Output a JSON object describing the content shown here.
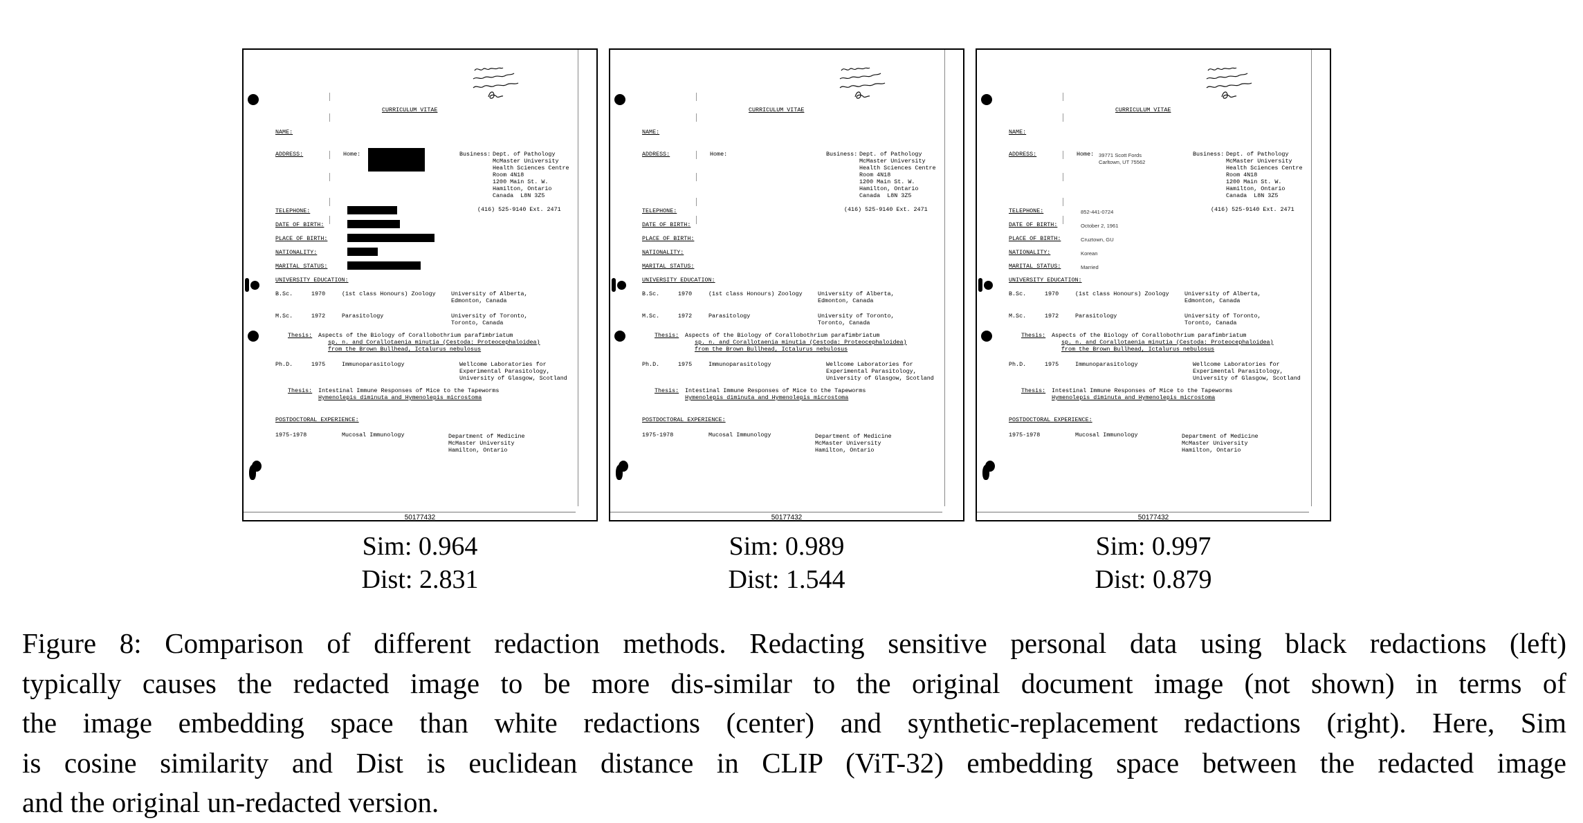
{
  "panels": [
    {
      "id": "black",
      "sim_label": "Sim: 0.964",
      "dist_label": "Dist: 2.831",
      "home_address": [],
      "personal": []
    },
    {
      "id": "white",
      "sim_label": "Sim: 0.989",
      "dist_label": "Dist: 1.544",
      "home_address": [],
      "personal": []
    },
    {
      "id": "synthetic",
      "sim_label": "Sim: 0.997",
      "dist_label": "Dist: 0.879",
      "home_address": [
        "39771 Scott Fords",
        "Carltown, UT 75562"
      ],
      "personal": [
        "852-441-0724",
        "October 2, 1961",
        "Cruztown, GU",
        "Korean",
        "Married"
      ]
    }
  ],
  "document": {
    "title": "CURRICULUM VITAE",
    "handwriting": [
      "Don't page",
      "clipped together",
      "yellow Tabs from",
      "Bonl"
    ],
    "labels": {
      "name": "NAME:",
      "address": "ADDRESS:",
      "home": "Home:",
      "business": "Business:",
      "telephone": "TELEPHONE:",
      "dob": "DATE OF BIRTH:",
      "pob": "PLACE OF BIRTH:",
      "nationality": "NATIONALITY:",
      "marital": "MARITAL STATUS:",
      "education": "UNIVERSITY EDUCATION:",
      "postdoc": "POSTDOCTORAL EXPERIENCE:"
    },
    "business_address": [
      "Dept. of Pathology",
      "McMaster University",
      "Health Sciences Centre",
      "Room 4N18",
      "1200 Main St. W.",
      "Hamilton, Ontario",
      "Canada  L8N 3Z5"
    ],
    "business_phone": "(416) 525-9140 Ext. 2471",
    "education": [
      {
        "degree": "B.Sc.",
        "year": "1970",
        "field": "(1st class Honours) Zoology",
        "institution": [
          "University of Alberta,",
          "Edmonton, Canada"
        ]
      },
      {
        "degree": "M.Sc.",
        "year": "1972",
        "field": "Parasitology",
        "institution": [
          "University of Toronto,",
          "Toronto, Canada"
        ]
      },
      {
        "degree": "Ph.D.",
        "year": "1975",
        "field": "Immunoparasitology",
        "institution": [
          "Wellcome Laboratories for",
          "Experimental Parasitology,",
          "University of Glasgow, Scotland"
        ]
      }
    ],
    "thesis_label": "Thesis:",
    "thesis1": [
      "Aspects of the Biology of Corallobothrium parafimbriatum",
      "sp. n. and Corallotaenia minutia (Cestoda: Proteocephaloidea)",
      "from the Brown Bullhead, Ictalurus nebulosus"
    ],
    "thesis2": [
      "Intestinal Immune Responses of Mice to the Tapeworms",
      "Hymenolepis diminuta and Hymenolepis microstoma"
    ],
    "postdoc": {
      "years": "1975-1978",
      "field": "Mucosal Immunology",
      "place": [
        "Department of Medicine",
        "McMaster University",
        "Hamilton, Ontario"
      ]
    },
    "doc_number": "50177432"
  },
  "caption": {
    "lines": [
      "Figure 8: Comparison of different redaction methods. Redacting sensitive personal data using black redactions (left)",
      "typically causes the redacted image to be more dis-similar to the original document image (not shown) in terms of",
      "the image embedding space than white redactions (center) and synthetic-replacement redactions (right). Here, Sim",
      "is cosine similarity and Dist is euclidean distance in CLIP (ViT-32) embedding space between the redacted image",
      "and the original un-redacted version."
    ]
  }
}
